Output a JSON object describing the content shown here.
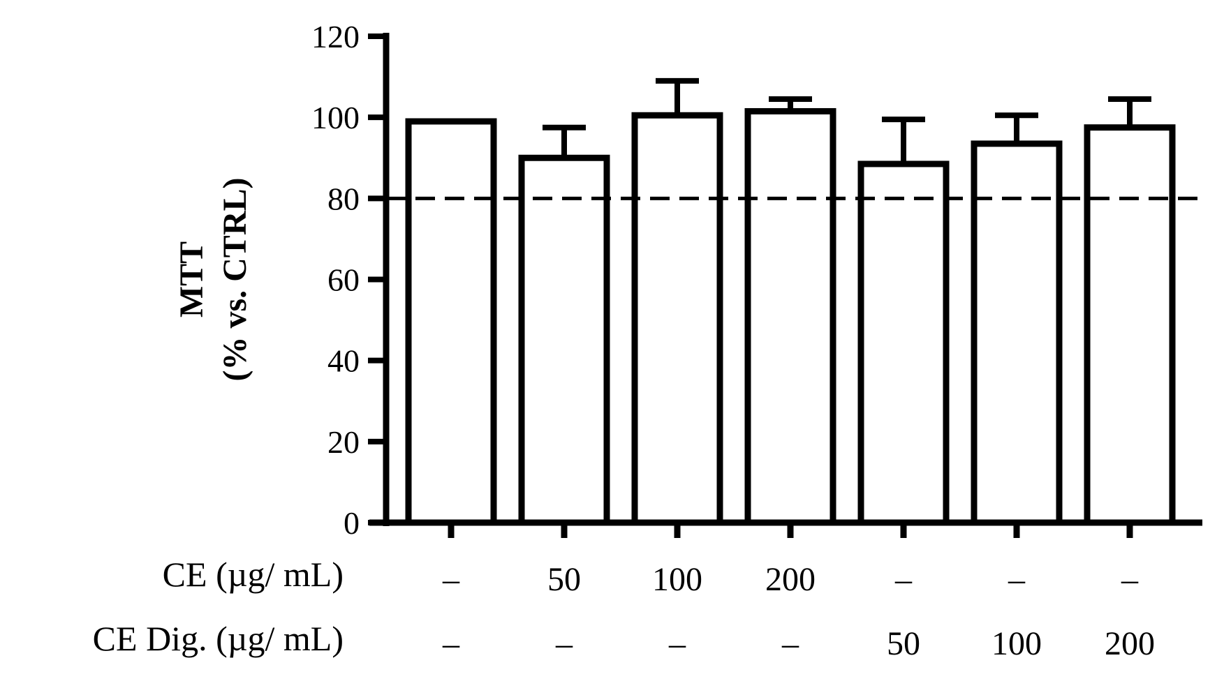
{
  "chart_data": {
    "type": "bar",
    "title": "",
    "ylabel_lines": [
      "MTT",
      "(% vs. CTRL)"
    ],
    "xlabel": "",
    "ylim": [
      0,
      120
    ],
    "yticks": [
      0,
      20,
      40,
      60,
      80,
      100,
      120
    ],
    "reference_line": {
      "value": 80,
      "style": "dashed"
    },
    "grid": false,
    "legend": "none",
    "bar_fill": "#ffffff",
    "bar_stroke": "#000000",
    "categories": [
      "1",
      "2",
      "3",
      "4",
      "5",
      "6",
      "7"
    ],
    "values": [
      99,
      90,
      100.5,
      101.5,
      88.5,
      93.5,
      97.5
    ],
    "error_upper": [
      99,
      97.5,
      109,
      104.5,
      99.5,
      100.5,
      104.5
    ],
    "condition_rows": [
      {
        "label": "CE (µg/ mL)",
        "values": [
          "–",
          "50",
          "100",
          "200",
          "–",
          "–",
          "–"
        ]
      },
      {
        "label": "CE Dig. (µg/ mL)",
        "values": [
          "–",
          "–",
          "–",
          "–",
          "50",
          "100",
          "200"
        ]
      }
    ]
  }
}
